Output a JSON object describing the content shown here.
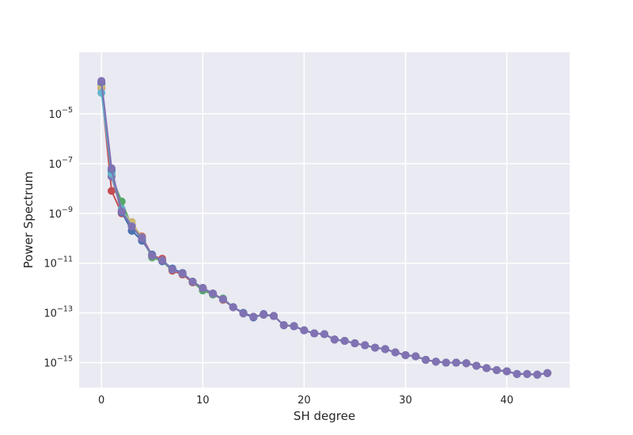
{
  "chart_data": {
    "type": "line",
    "title": "",
    "xlabel": "SH degree",
    "ylabel": "Power Spectrum",
    "xscale": "linear",
    "yscale": "log",
    "xlim": [
      -2.2,
      46.2
    ],
    "ylim": [
      1e-16,
      0.003
    ],
    "grid": true,
    "legend": "none",
    "background_color": "#eaeaf2",
    "grid_color": "#ffffff",
    "xticks": [
      0,
      10,
      20,
      30,
      40
    ],
    "xtick_labels": [
      "0",
      "10",
      "20",
      "30",
      "40"
    ],
    "yticks": [
      1e-15,
      1e-13,
      1e-11,
      1e-09,
      1e-07,
      1e-05
    ],
    "ytick_labels": [
      {
        "base": "10",
        "exp": "−15"
      },
      {
        "base": "10",
        "exp": "−13"
      },
      {
        "base": "10",
        "exp": "−11"
      },
      {
        "base": "10",
        "exp": "−9"
      },
      {
        "base": "10",
        "exp": "−7"
      },
      {
        "base": "10",
        "exp": "−5"
      }
    ],
    "x": [
      0,
      1,
      2,
      3,
      4,
      5,
      6,
      7,
      8,
      9,
      10,
      11,
      12,
      13,
      14,
      15,
      16,
      17,
      18,
      19,
      20,
      21,
      22,
      23,
      24,
      25,
      26,
      27,
      28,
      29,
      30,
      31,
      32,
      33,
      34,
      35,
      36,
      37,
      38,
      39,
      40,
      41,
      42,
      43,
      44
    ],
    "series": [
      {
        "color": "#4c72b0",
        "values": [
          0.00018,
          5e-08,
          1.2e-09,
          2e-10,
          8e-11,
          2.2e-11,
          1.2e-11,
          6e-12,
          4e-12,
          1.7e-12,
          1e-12,
          5.5e-13,
          3.5e-13,
          1.7e-13,
          9.5e-14,
          6.5e-14,
          9e-14,
          7.5e-14,
          3.2e-14,
          3e-14,
          2e-14,
          1.5e-14,
          1.4e-14,
          8.5e-15,
          7.5e-15,
          6e-15,
          5e-15,
          4e-15,
          3.5e-15,
          2.6e-15,
          2e-15,
          1.8e-15,
          1.3e-15,
          1.1e-15,
          1e-15,
          1e-15,
          9.5e-16,
          7.5e-16,
          6e-16,
          5e-16,
          4.5e-16,
          3.5e-16,
          3.5e-16,
          3.3e-16,
          3.8e-16
        ]
      },
      {
        "color": "#dd8452",
        "values": [
          0.00013,
          3.5e-08,
          1.1e-09,
          3.5e-10,
          1.2e-10,
          2e-11,
          1.3e-11,
          5.5e-12,
          3.8e-12,
          1.8e-12,
          1e-12,
          6e-13,
          3.3e-13,
          1.7e-13,
          1e-13,
          7e-14,
          8.5e-14,
          7.5e-14,
          3.2e-14,
          2.9e-14,
          2e-14,
          1.5e-14,
          1.4e-14,
          8.5e-15,
          7.5e-15,
          6e-15,
          5e-15,
          4e-15,
          3.5e-15,
          2.6e-15,
          2e-15,
          1.8e-15,
          1.3e-15,
          1.1e-15,
          1e-15,
          1e-15,
          9.5e-16,
          7.5e-16,
          6e-16,
          5e-16,
          4.5e-16,
          3.5e-16,
          3.5e-16,
          3.3e-16,
          3.8e-16
        ]
      },
      {
        "color": "#55a868",
        "values": [
          0.00015,
          3e-08,
          3e-09,
          3e-10,
          1e-10,
          1.7e-11,
          1.2e-11,
          5e-12,
          3.5e-12,
          1.7e-12,
          8e-13,
          5.5e-13,
          3.8e-13,
          1.7e-13,
          1e-13,
          7e-14,
          8.5e-14,
          7.5e-14,
          3.2e-14,
          2.9e-14,
          2e-14,
          1.5e-14,
          1.4e-14,
          8.5e-15,
          7.5e-15,
          6e-15,
          5e-15,
          4e-15,
          3.5e-15,
          2.6e-15,
          2e-15,
          1.8e-15,
          1.3e-15,
          1.1e-15,
          1e-15,
          1e-15,
          9.5e-16,
          7.5e-16,
          6e-16,
          5e-16,
          4.5e-16,
          3.5e-16,
          3.5e-16,
          3.3e-16,
          3.8e-16
        ]
      },
      {
        "color": "#c44e52",
        "values": [
          0.00011,
          8e-09,
          1e-09,
          3e-10,
          1.1e-10,
          2e-11,
          1.5e-11,
          5e-12,
          3.5e-12,
          1.7e-12,
          1e-12,
          6e-13,
          3.5e-13,
          1.7e-13,
          1e-13,
          7e-14,
          8.5e-14,
          7.5e-14,
          3.2e-14,
          2.9e-14,
          2e-14,
          1.5e-14,
          1.4e-14,
          8.5e-15,
          7.5e-15,
          6e-15,
          5e-15,
          4e-15,
          3.5e-15,
          2.6e-15,
          2e-15,
          1.8e-15,
          1.3e-15,
          1.1e-15,
          1e-15,
          1e-15,
          9.5e-16,
          7.5e-16,
          6e-16,
          5e-16,
          4.5e-16,
          3.5e-16,
          3.5e-16,
          3.3e-16,
          3.8e-16
        ]
      },
      {
        "color": "#8172b3",
        "values": [
          0.00016,
          3e-08,
          1.2e-09,
          3.2e-10,
          1.1e-10,
          2e-11,
          1.3e-11,
          5.5e-12,
          3.8e-12,
          1.8e-12,
          1e-12,
          6e-13,
          3.5e-13,
          1.7e-13,
          1e-13,
          7e-14,
          8.5e-14,
          7.5e-14,
          3.2e-14,
          2.9e-14,
          2e-14,
          1.5e-14,
          1.4e-14,
          8.5e-15,
          7.5e-15,
          6e-15,
          5e-15,
          4e-15,
          3.5e-15,
          2.6e-15,
          2e-15,
          1.8e-15,
          1.3e-15,
          1.1e-15,
          1e-15,
          1e-15,
          9.5e-16,
          7.5e-16,
          6e-16,
          5e-16,
          4.5e-16,
          3.5e-16,
          3.5e-16,
          3.3e-16,
          3.8e-16
        ]
      },
      {
        "color": "#ccb974",
        "values": [
          0.00012,
          4e-08,
          1.3e-09,
          4.5e-10,
          1e-10,
          2e-11,
          1.3e-11,
          5.5e-12,
          3.8e-12,
          1.8e-12,
          1e-12,
          6e-13,
          3.5e-13,
          1.7e-13,
          1e-13,
          7e-14,
          8.5e-14,
          7.5e-14,
          3.2e-14,
          2.9e-14,
          2e-14,
          1.5e-14,
          1.4e-14,
          8.5e-15,
          7.5e-15,
          6e-15,
          5e-15,
          4e-15,
          3.5e-15,
          2.6e-15,
          2e-15,
          1.8e-15,
          1.3e-15,
          1.1e-15,
          1e-15,
          1e-15,
          9.5e-16,
          7.5e-16,
          6e-16,
          5e-16,
          4.5e-16,
          3.5e-16,
          3.5e-16,
          3.3e-16,
          3.8e-16
        ]
      },
      {
        "color": "#64b5cd",
        "values": [
          7e-05,
          4e-08,
          1.5e-09,
          3e-10,
          9e-11,
          2e-11,
          1.3e-11,
          6e-12,
          4e-12,
          1.8e-12,
          1e-12,
          6e-13,
          3.5e-13,
          1.7e-13,
          1e-13,
          7e-14,
          8.5e-14,
          7.5e-14,
          3.2e-14,
          2.9e-14,
          2e-14,
          1.5e-14,
          1.4e-14,
          8.5e-15,
          7.5e-15,
          6e-15,
          5e-15,
          4e-15,
          3.5e-15,
          2.6e-15,
          2e-15,
          1.8e-15,
          1.3e-15,
          1.1e-15,
          1e-15,
          1e-15,
          9.5e-16,
          7.5e-16,
          6e-16,
          5e-16,
          4.5e-16,
          3.5e-16,
          3.5e-16,
          3.3e-16,
          3.8e-16
        ]
      },
      {
        "color": "#4c72b0",
        "values": [
          0.00019,
          6e-08,
          1.1e-09,
          2e-10,
          8e-11,
          2.2e-11,
          1.2e-11,
          6e-12,
          4e-12,
          1.8e-12,
          1e-12,
          6e-13,
          3.5e-13,
          1.7e-13,
          1e-13,
          7e-14,
          8.5e-14,
          7.5e-14,
          3.2e-14,
          2.9e-14,
          2e-14,
          1.5e-14,
          1.4e-14,
          8.5e-15,
          7.5e-15,
          6e-15,
          5e-15,
          4e-15,
          3.5e-15,
          2.6e-15,
          2e-15,
          1.8e-15,
          1.3e-15,
          1.1e-15,
          1e-15,
          1e-15,
          9.5e-16,
          7.5e-16,
          6e-16,
          5e-16,
          4.5e-16,
          3.5e-16,
          3.5e-16,
          3.3e-16,
          3.8e-16
        ]
      },
      {
        "color": "#8172b3",
        "values": [
          0.00021,
          6.5e-08,
          1.2e-09,
          3e-10,
          1e-10,
          2e-11,
          1.3e-11,
          5.5e-12,
          3.8e-12,
          1.8e-12,
          1e-12,
          6e-13,
          3.5e-13,
          1.7e-13,
          9.5e-14,
          7e-14,
          8.5e-14,
          7.5e-14,
          3.2e-14,
          2.9e-14,
          2e-14,
          1.5e-14,
          1.4e-14,
          8.5e-15,
          7.5e-15,
          6e-15,
          5e-15,
          4e-15,
          3.5e-15,
          2.6e-15,
          2e-15,
          1.8e-15,
          1.3e-15,
          1.1e-15,
          1e-15,
          1e-15,
          9.5e-16,
          7.5e-16,
          6e-16,
          5e-16,
          4.5e-16,
          3.5e-16,
          3.5e-16,
          3.3e-16,
          3.8e-16
        ]
      }
    ]
  }
}
